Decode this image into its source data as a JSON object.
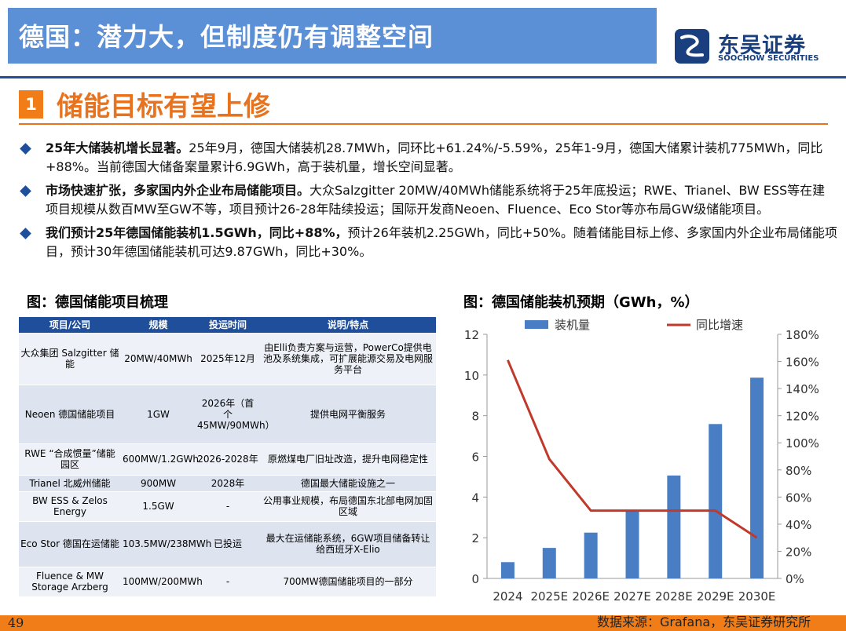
{
  "header": {
    "title": "德国：潜力大，但制度仍有调整空间"
  },
  "logo": {
    "cn": "东吴证券",
    "en": "SOOCHOW SECURITIES"
  },
  "section": {
    "number": "1",
    "title": "储能目标有望上修"
  },
  "bullets": [
    {
      "lead": "25年大储装机增长显著。",
      "text": "25年9月，德国大储装机28.7MWh，同环比+61.24%/-5.59%，25年1-9月，德国大储累计装机775MWh，同比+88%。当前德国大储备案量累计6.9GWh，高于装机量，增长空间显著。"
    },
    {
      "lead": "市场快速扩张，多家国内外企业布局储能项目。",
      "text": "大众Salzgitter 20MW/40MWh储能系统将于25年底投运；RWE、Trianel、BW ESS等在建项目规模从数百MW至GW不等，项目预计26-28年陆续投运；国际开发商Neoen、Fluence、Eco Stor等亦布局GW级储能项目。"
    },
    {
      "lead": "我们预计25年德国储能装机1.5GWh，同比+88%，",
      "text": "预计26年装机2.25GWh，同比+50%。随着储能目标上修、多家国内外企业布局储能项目，预计30年德国储能装机可达9.87GWh，同比+30%。"
    }
  ],
  "table": {
    "title": "图：德国储能项目梳理",
    "headers": [
      "项目/公司",
      "规模",
      "投运时间",
      "说明/特点"
    ],
    "rows": [
      [
        "大众集团 Salzgitter 储能",
        "20MW/40MWh",
        "2025年12月",
        "由Elli负责方案与运营，PowerCo提供电池及系统集成，可扩展能源交易及电网服务平台"
      ],
      [
        "Neoen 德国储能项目",
        "1GW",
        "2026年（首个45MW/90MWh）",
        "提供电网平衡服务"
      ],
      [
        "RWE “合成惯量”储能园区",
        "600MW/1.2GWh",
        "2026-2028年",
        "原燃煤电厂旧址改造，提升电网稳定性"
      ],
      [
        "Trianel 北威州储能",
        "900MW",
        "2028年",
        "德国最大储能设施之一"
      ],
      [
        "BW ESS & Zelos Energy",
        "1.5GW",
        "-",
        "公用事业规模，布局德国东北部电网加固区域"
      ],
      [
        "Eco Stor 德国在运储能",
        "103.5MW/238MWh",
        "已投运",
        "最大在运储能系统，6GW项目储备转让给西班牙X-Elio"
      ],
      [
        "Fluence & MW Storage Arzberg",
        "100MW/200MWh",
        "-",
        "700MW德国储能项目的一部分"
      ]
    ]
  },
  "chart_title": "图：德国储能装机预期（GWh，%）",
  "chart_data": {
    "type": "bar",
    "categories": [
      "2024",
      "2025E",
      "2026E",
      "2027E",
      "2028E",
      "2029E",
      "2030E"
    ],
    "series": [
      {
        "name": "装机量",
        "type": "bar",
        "axis": "left",
        "values": [
          0.8,
          1.5,
          2.25,
          3.37,
          5.06,
          7.59,
          9.87
        ]
      },
      {
        "name": "同比增速",
        "type": "line",
        "axis": "right",
        "values": [
          1.61,
          0.88,
          0.5,
          0.5,
          0.5,
          0.5,
          0.3
        ]
      }
    ],
    "yticks_left": [
      "0",
      "2",
      "4",
      "6",
      "8",
      "10",
      "12"
    ],
    "ylim_left": [
      0,
      12
    ],
    "yticks_right": [
      "0%",
      "20%",
      "40%",
      "60%",
      "80%",
      "100%",
      "120%",
      "140%",
      "160%",
      "180%"
    ],
    "ylim_right": [
      0,
      1.8
    ],
    "legend_position": "top",
    "bar_color": "#4a7ec4",
    "line_color": "#c0392b"
  },
  "footer": {
    "page": "49",
    "source": "数据来源：Grafana，东吴证券研究所"
  }
}
